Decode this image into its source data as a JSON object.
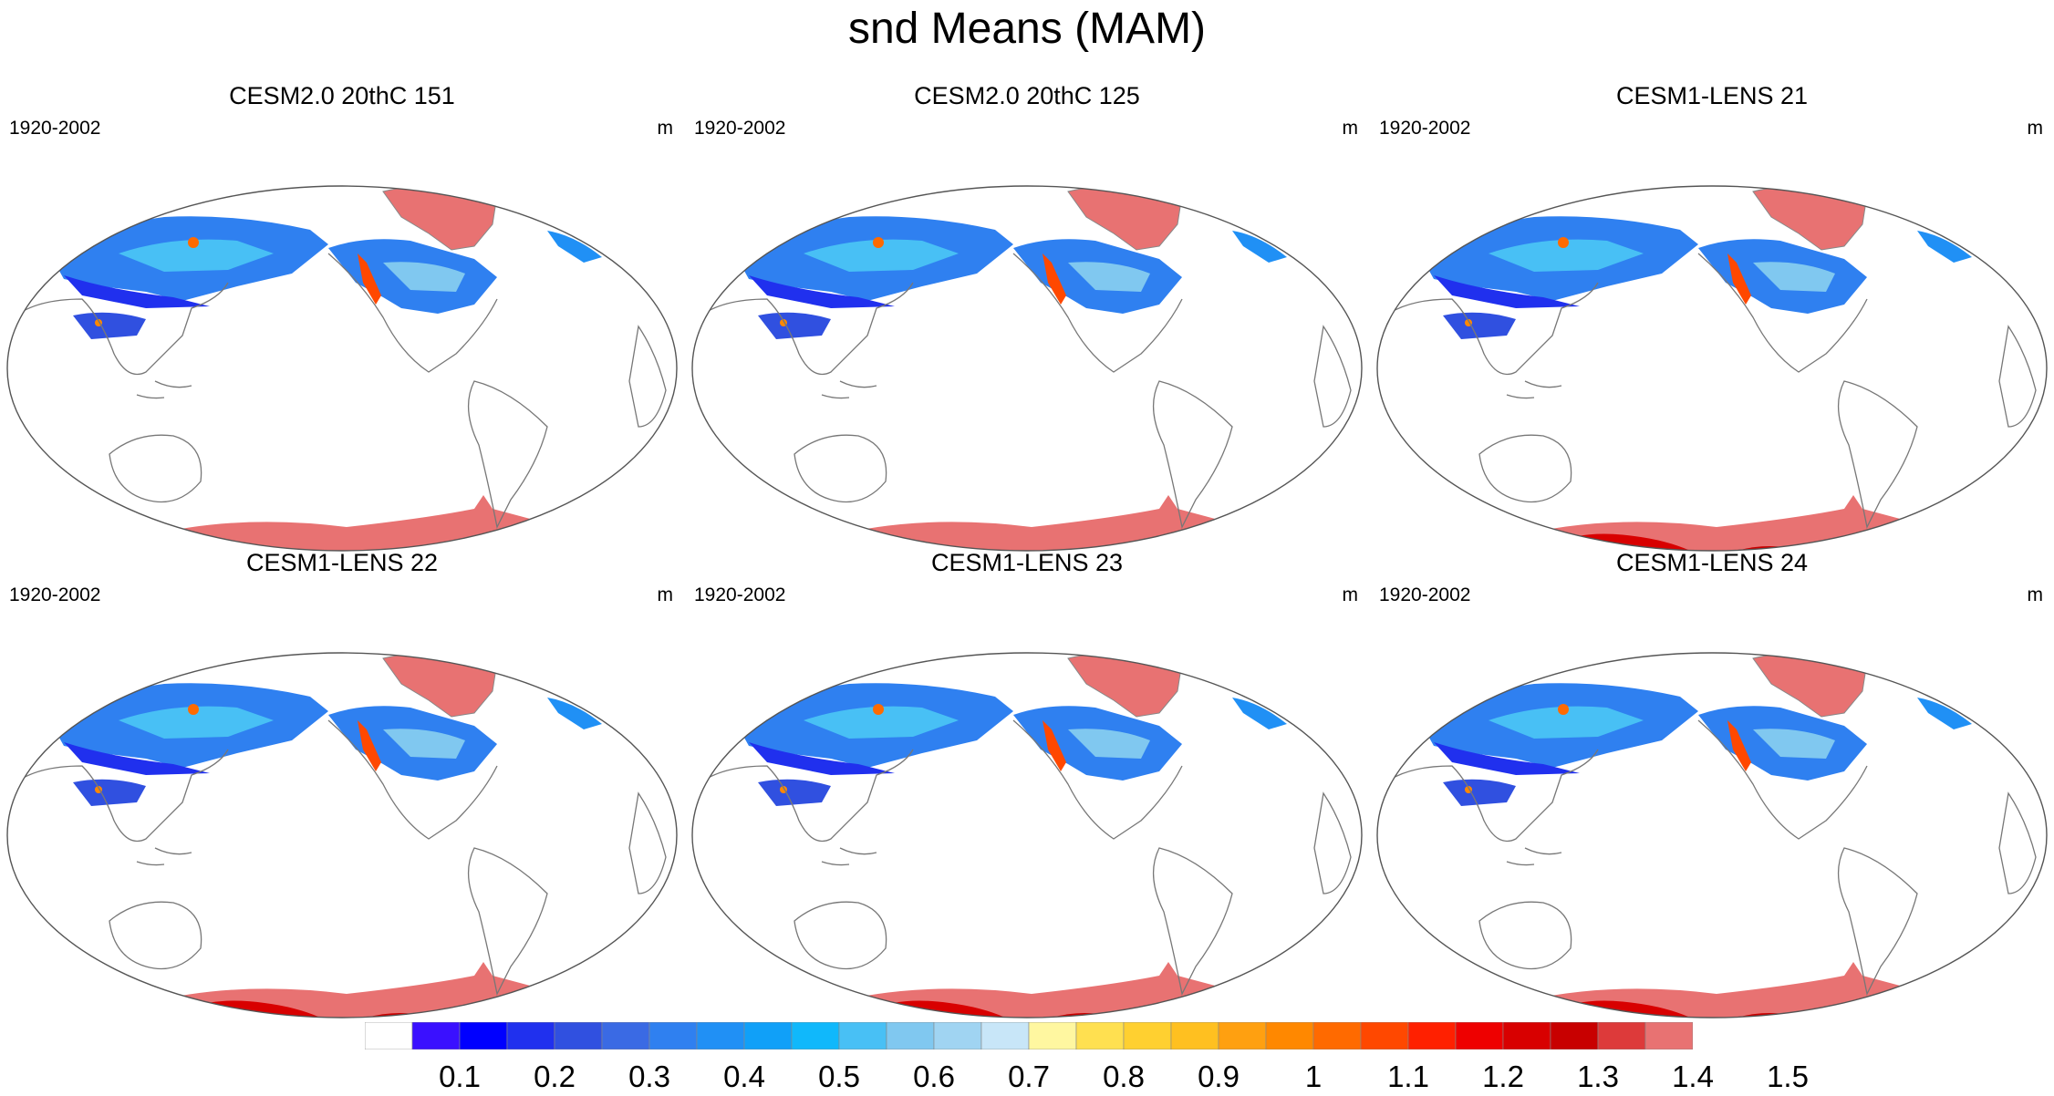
{
  "title": "snd Means (MAM)",
  "panels": [
    {
      "title": "CESM2.0 20thC 151",
      "period": "1920-2002",
      "units": "m",
      "antarctica": "plain"
    },
    {
      "title": "CESM2.0 20thC 125",
      "period": "1920-2002",
      "units": "m",
      "antarctica": "plain"
    },
    {
      "title": "CESM1-LENS 21",
      "period": "1920-2002",
      "units": "m",
      "antarctica": "deep"
    },
    {
      "title": "CESM1-LENS 22",
      "period": "1920-2002",
      "units": "m",
      "antarctica": "deep"
    },
    {
      "title": "CESM1-LENS 23",
      "period": "1920-2002",
      "units": "m",
      "antarctica": "deep"
    },
    {
      "title": "CESM1-LENS 24",
      "period": "1920-2002",
      "units": "m",
      "antarctica": "deep"
    }
  ],
  "colorbar": {
    "colors": [
      "#ffffff",
      "#3a10ff",
      "#0000ff",
      "#2030ee",
      "#3050e0",
      "#3a6ae4",
      "#2f80f0",
      "#2090f5",
      "#10a0f8",
      "#10b8fb",
      "#48c0f5",
      "#80c8f0",
      "#a0d4f2",
      "#c8e6f8",
      "#fff7a0",
      "#ffe050",
      "#ffd030",
      "#ffc020",
      "#ffa010",
      "#ff8800",
      "#ff6a00",
      "#ff4800",
      "#ff2000",
      "#ee0000",
      "#d80000",
      "#c80000",
      "#dd3a3a",
      "#e87272"
    ],
    "labels": [
      "0.1",
      "0.2",
      "0.3",
      "0.4",
      "0.5",
      "0.6",
      "0.7",
      "0.8",
      "0.9",
      "1",
      "1.1",
      "1.2",
      "1.3",
      "1.4",
      "1.5"
    ]
  }
}
